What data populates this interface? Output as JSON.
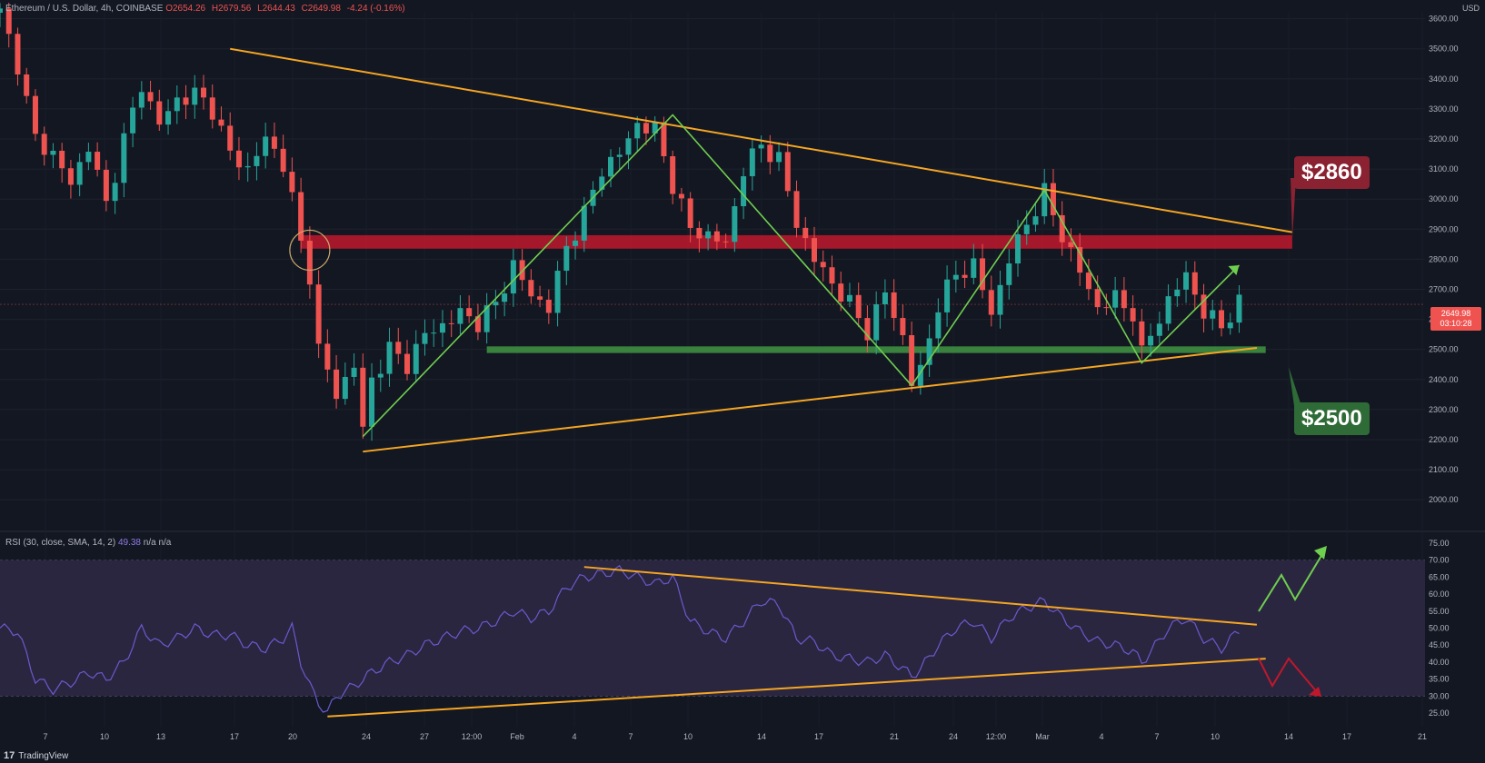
{
  "header": {
    "symbol": "Ethereum / U.S. Dollar, 4h, COINBASE",
    "open": "O2654.26",
    "high": "H2679.56",
    "low": "L2644.43",
    "close": "C2649.98",
    "change": "-4.24 (-0.16%)"
  },
  "currency": "USD",
  "last_price": {
    "value": "2649.98",
    "countdown": "03:10:28"
  },
  "badges": {
    "resistance": "$2860",
    "support": "$2500"
  },
  "rsi_title": {
    "label": "RSI (30, close, SMA, 14, 2)",
    "value": "49.38",
    "extra": "n/a n/a"
  },
  "footer": {
    "brand": "TradingView"
  },
  "colors": {
    "background": "#131722",
    "trendline": "#f5a623",
    "zigzag": "#6fcf4f",
    "resistance_zone": "#c0182b",
    "support_zone": "#3e8e41",
    "rsi_line": "#6a5acd",
    "rsi_band": "#2a2640",
    "candle_up": "#26a69a",
    "candle_down": "#ef5350"
  },
  "chart_data": [
    {
      "type": "candlestick",
      "title": "Ethereum / U.S. Dollar, 4h, COINBASE",
      "x_tick_labels": [
        "7",
        "10",
        "13",
        "17",
        "20",
        "24",
        "27",
        "12:00",
        "Feb",
        "4",
        "7",
        "10",
        "14",
        "17",
        "21",
        "24",
        "12:00",
        "Mar",
        "4",
        "7",
        "10",
        "14",
        "17",
        "21"
      ],
      "y_tick_labels": [
        "2000.00",
        "2100.00",
        "2200.00",
        "2300.00",
        "2400.00",
        "2500.00",
        "2600.00",
        "2700.00",
        "2800.00",
        "2900.00",
        "3000.00",
        "3100.00",
        "3200.00",
        "3300.00",
        "3400.00",
        "3500.00",
        "3600.00"
      ],
      "ylim": [
        1940,
        3620
      ],
      "price_path": [
        [
          0,
          3620
        ],
        [
          2,
          3450
        ],
        [
          4,
          3200
        ],
        [
          6,
          3150
        ],
        [
          8,
          3050
        ],
        [
          10,
          3180
        ],
        [
          12,
          2980
        ],
        [
          14,
          3200
        ],
        [
          16,
          3380
        ],
        [
          18,
          3250
        ],
        [
          20,
          3330
        ],
        [
          22,
          3350
        ],
        [
          24,
          3300
        ],
        [
          26,
          3150
        ],
        [
          28,
          3100
        ],
        [
          30,
          3200
        ],
        [
          32,
          3120
        ],
        [
          33,
          3000
        ],
        [
          34,
          2850
        ],
        [
          35,
          2750
        ],
        [
          36,
          2500
        ],
        [
          38,
          2350
        ],
        [
          40,
          2450
        ],
        [
          41,
          2230
        ],
        [
          42,
          2400
        ],
        [
          44,
          2500
        ],
        [
          46,
          2450
        ],
        [
          48,
          2550
        ],
        [
          50,
          2580
        ],
        [
          52,
          2620
        ],
        [
          54,
          2590
        ],
        [
          56,
          2650
        ],
        [
          58,
          2780
        ],
        [
          60,
          2680
        ],
        [
          62,
          2640
        ],
        [
          64,
          2840
        ],
        [
          66,
          2950
        ],
        [
          68,
          3100
        ],
        [
          70,
          3150
        ],
        [
          72,
          3250
        ],
        [
          74,
          3230
        ],
        [
          76,
          3050
        ],
        [
          78,
          2900
        ],
        [
          80,
          2880
        ],
        [
          82,
          2850
        ],
        [
          84,
          3100
        ],
        [
          86,
          3180
        ],
        [
          88,
          3130
        ],
        [
          90,
          2920
        ],
        [
          92,
          2800
        ],
        [
          94,
          2720
        ],
        [
          96,
          2650
        ],
        [
          98,
          2560
        ],
        [
          100,
          2690
        ],
        [
          102,
          2540
        ],
        [
          103,
          2390
        ],
        [
          104,
          2430
        ],
        [
          106,
          2650
        ],
        [
          108,
          2750
        ],
        [
          110,
          2780
        ],
        [
          112,
          2620
        ],
        [
          114,
          2800
        ],
        [
          116,
          2920
        ],
        [
          118,
          3020
        ],
        [
          120,
          2880
        ],
        [
          122,
          2760
        ],
        [
          124,
          2640
        ],
        [
          126,
          2670
        ],
        [
          128,
          2620
        ],
        [
          129,
          2480
        ],
        [
          130,
          2550
        ],
        [
          132,
          2660
        ],
        [
          134,
          2750
        ],
        [
          136,
          2620
        ],
        [
          138,
          2580
        ],
        [
          140,
          2650
        ]
      ],
      "last_price": 2649.98,
      "resistance_zone": {
        "label": "$2860",
        "low": 2835,
        "high": 2880
      },
      "support_zone": {
        "label": "$2500",
        "low": 2488,
        "high": 2510
      },
      "upper_trendline": [
        [
          26,
          3500
        ],
        [
          146,
          2890
        ]
      ],
      "lower_trendline": [
        [
          41,
          2160
        ],
        [
          142,
          2505
        ]
      ],
      "zigzag": [
        [
          41,
          2210
        ],
        [
          76,
          3280
        ],
        [
          103,
          2380
        ],
        [
          118,
          3030
        ],
        [
          129,
          2455
        ],
        [
          140,
          2780
        ]
      ],
      "legend": "none",
      "grid": true
    },
    {
      "type": "line",
      "title": "RSI (30, close, SMA, 14, 2)",
      "y_tick_labels": [
        "25.00",
        "30.00",
        "35.00",
        "40.00",
        "45.00",
        "50.00",
        "55.00",
        "60.00",
        "65.00",
        "70.00",
        "75.00"
      ],
      "ylim": [
        21,
        75
      ],
      "levels": [
        30,
        50,
        70
      ],
      "values_path": [
        [
          0,
          50
        ],
        [
          2,
          49
        ],
        [
          4,
          35
        ],
        [
          6,
          32
        ],
        [
          8,
          34
        ],
        [
          10,
          37
        ],
        [
          12,
          35
        ],
        [
          14,
          40
        ],
        [
          16,
          50
        ],
        [
          18,
          45
        ],
        [
          20,
          47
        ],
        [
          22,
          50
        ],
        [
          24,
          48
        ],
        [
          26,
          48
        ],
        [
          28,
          45
        ],
        [
          30,
          44
        ],
        [
          32,
          47
        ],
        [
          33,
          50
        ],
        [
          34,
          40
        ],
        [
          35,
          33
        ],
        [
          36,
          28
        ],
        [
          37,
          25
        ],
        [
          38,
          30
        ],
        [
          40,
          33
        ],
        [
          42,
          37
        ],
        [
          44,
          40
        ],
        [
          46,
          42
        ],
        [
          48,
          45
        ],
        [
          50,
          47
        ],
        [
          52,
          49
        ],
        [
          54,
          50
        ],
        [
          56,
          52
        ],
        [
          58,
          55
        ],
        [
          60,
          53
        ],
        [
          62,
          55
        ],
        [
          64,
          62
        ],
        [
          66,
          65
        ],
        [
          68,
          66
        ],
        [
          70,
          67
        ],
        [
          72,
          65
        ],
        [
          74,
          63
        ],
        [
          76,
          65
        ],
        [
          78,
          52
        ],
        [
          80,
          49
        ],
        [
          82,
          47
        ],
        [
          84,
          52
        ],
        [
          86,
          58
        ],
        [
          88,
          57
        ],
        [
          90,
          47
        ],
        [
          92,
          46
        ],
        [
          94,
          42
        ],
        [
          96,
          41
        ],
        [
          98,
          40
        ],
        [
          100,
          42
        ],
        [
          102,
          38
        ],
        [
          103,
          36
        ],
        [
          104,
          38
        ],
        [
          106,
          45
        ],
        [
          108,
          50
        ],
        [
          110,
          52
        ],
        [
          112,
          47
        ],
        [
          114,
          53
        ],
        [
          116,
          56
        ],
        [
          118,
          58
        ],
        [
          120,
          53
        ],
        [
          122,
          49
        ],
        [
          124,
          46
        ],
        [
          126,
          45
        ],
        [
          128,
          43
        ],
        [
          129,
          40
        ],
        [
          130,
          43
        ],
        [
          132,
          50
        ],
        [
          134,
          53
        ],
        [
          136,
          47
        ],
        [
          138,
          44
        ],
        [
          140,
          49.38
        ]
      ],
      "upper_trendline": [
        [
          66,
          68
        ],
        [
          142,
          51
        ]
      ],
      "lower_trendline": [
        [
          37,
          24
        ],
        [
          143,
          41
        ]
      ],
      "last_value": 49.38
    }
  ]
}
